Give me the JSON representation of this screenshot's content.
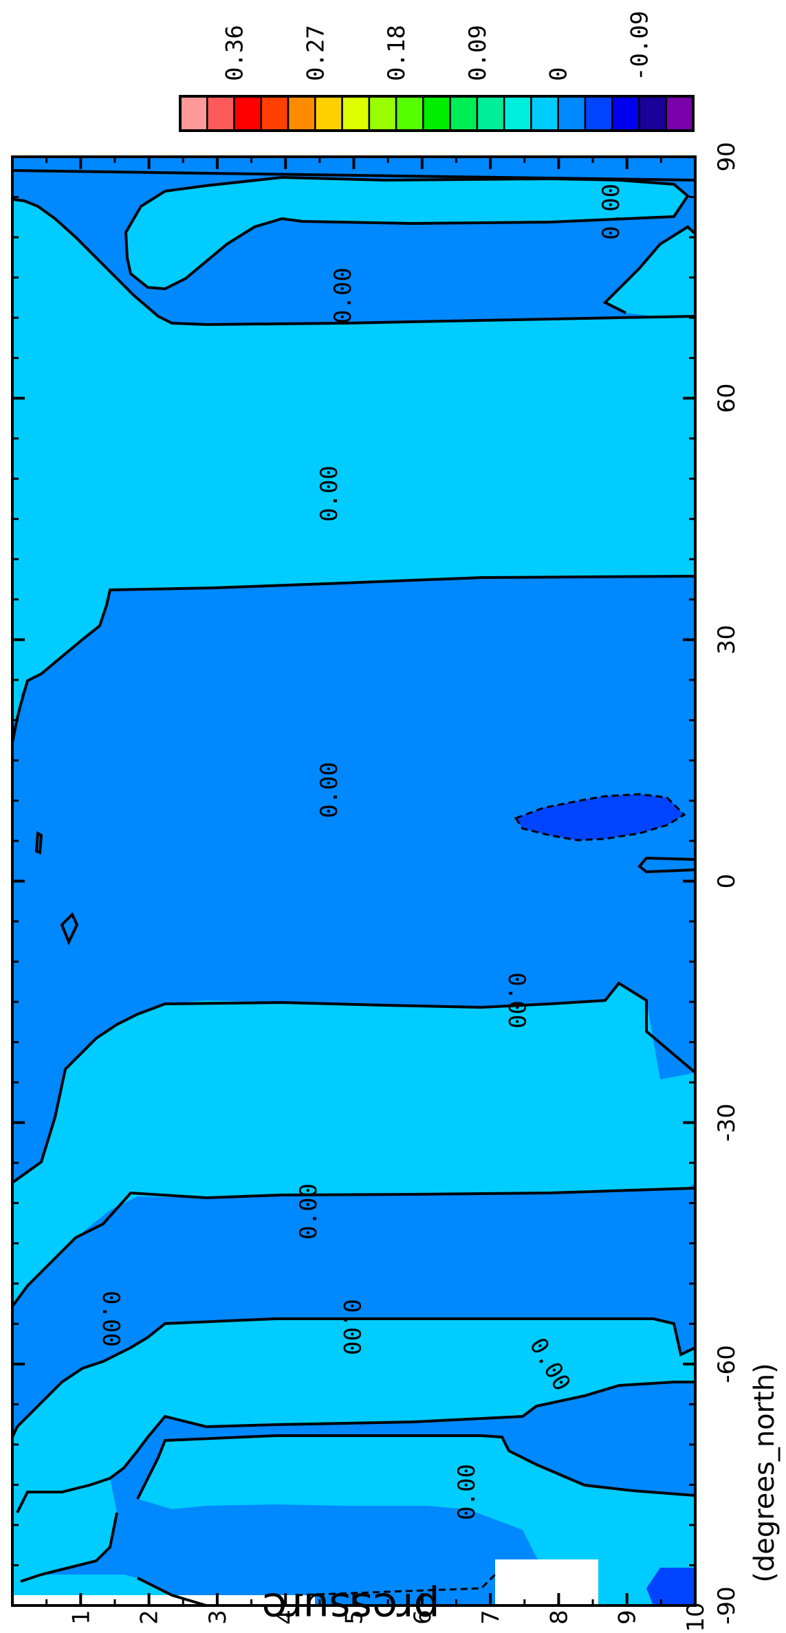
{
  "chart_data": {
    "type": "contour",
    "orientation": "rotated-90",
    "xlabel": "(degrees_north)",
    "ylabel": "pressure",
    "xlim": [
      -90,
      90
    ],
    "ylim": [
      0,
      10
    ],
    "x_ticks": [
      "-90",
      "-60",
      "-30",
      "0",
      "30",
      "60",
      "90"
    ],
    "y_ticks": [
      "1",
      "2",
      "3",
      "4",
      "5",
      "6",
      "7",
      "8",
      "9",
      "10"
    ],
    "contour_levels_labeled": [
      "0.00",
      "0.00",
      "0.00",
      "0.00",
      "0.00",
      "0.00",
      "0.00",
      "0.00",
      "0.00",
      "0.00"
    ],
    "colorbar": {
      "tick_labels": [
        "0.36",
        "0.27",
        "0.18",
        "0.09",
        "0",
        "-0.09"
      ],
      "colors": [
        "#ff9a9a",
        "#ff5a5a",
        "#ff0000",
        "#ff4000",
        "#ff8c00",
        "#ffd000",
        "#ddff00",
        "#99ff00",
        "#55ff00",
        "#00ee00",
        "#00ee55",
        "#00ee99",
        "#00eedd",
        "#00ccff",
        "#0088ff",
        "#0044ff",
        "#0000ee",
        "#1a0099",
        "#7a00aa"
      ]
    },
    "fill_colors": {
      "negative": "#0088ff",
      "positive": "#00ccff",
      "strong_negative": "#0044ff"
    }
  }
}
